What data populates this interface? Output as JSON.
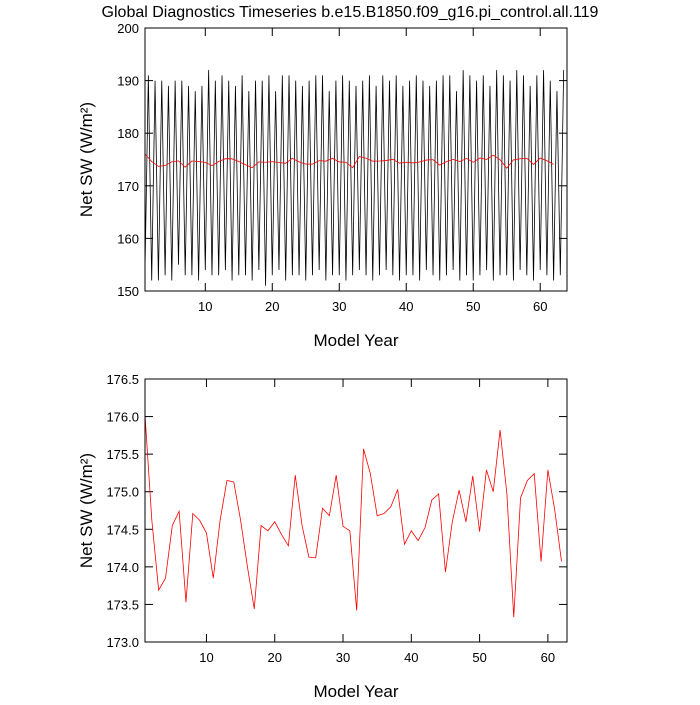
{
  "chart_data": [
    {
      "type": "line",
      "title": "Global Diagnostics Timeseries b.e15.B1850.f09_g16.pi_control.all.119",
      "xlabel": "Model Year",
      "ylabel": "Net SW (W/m²)",
      "xlim": [
        1,
        64
      ],
      "xticks": [
        10,
        20,
        30,
        40,
        50,
        60
      ],
      "ylim": [
        150,
        200
      ],
      "yticks": [
        150,
        160,
        170,
        180,
        190,
        200
      ],
      "series": [
        {
          "color": "#000000",
          "x": [
            1,
            1.5,
            2,
            2.5,
            3,
            3.5,
            4,
            4.5,
            5,
            5.5,
            6,
            6.5,
            7,
            7.5,
            8,
            8.5,
            9,
            9.5,
            10,
            10.5,
            11,
            11.5,
            12,
            12.5,
            13,
            13.5,
            14,
            14.5,
            15,
            15.5,
            16,
            16.5,
            17,
            17.5,
            18,
            18.5,
            19,
            19.5,
            20,
            20.5,
            21,
            21.5,
            22,
            22.5,
            23,
            23.5,
            24,
            24.5,
            25,
            25.5,
            26,
            26.5,
            27,
            27.5,
            28,
            28.5,
            29,
            29.5,
            30,
            30.5,
            31,
            31.5,
            32,
            32.5,
            33,
            33.5,
            34,
            34.5,
            35,
            35.5,
            36,
            36.5,
            37,
            37.5,
            38,
            38.5,
            39,
            39.5,
            40,
            40.5,
            41,
            41.5,
            42,
            42.5,
            43,
            43.5,
            44,
            44.5,
            45,
            45.5,
            46,
            46.5,
            47,
            47.5,
            48,
            48.5,
            49,
            49.5,
            50,
            50.5,
            51,
            51.5,
            52,
            52.5,
            53,
            53.5,
            54,
            54.5,
            55,
            55.5,
            56,
            56.5,
            57,
            57.5,
            58,
            58.5,
            59,
            59.5,
            60,
            60.5,
            61,
            61.5,
            62,
            62.5,
            63,
            63.5
          ],
          "values": [
            154,
            191,
            152,
            190,
            152,
            190,
            153,
            189,
            152,
            190,
            155,
            190,
            153,
            189,
            153,
            188,
            152,
            189,
            154,
            192,
            153,
            190,
            153,
            191,
            154,
            190,
            152,
            189,
            153,
            191,
            153,
            188,
            152,
            190,
            154,
            190,
            151,
            191,
            153,
            188,
            154,
            191,
            152,
            191,
            153,
            190,
            153,
            189,
            152,
            190,
            153,
            191,
            154,
            191,
            152,
            188,
            153,
            190,
            153,
            191,
            152,
            190,
            153,
            189,
            154,
            190,
            153,
            191,
            152,
            189,
            153,
            191,
            154,
            190,
            153,
            191,
            152,
            189,
            153,
            190,
            153,
            191,
            152,
            190,
            154,
            189,
            153,
            190,
            152,
            191,
            153,
            191,
            154,
            188,
            152,
            192,
            153,
            191,
            152,
            190,
            153,
            191,
            154,
            189,
            152,
            192,
            153,
            191,
            153,
            190,
            152,
            192,
            154,
            191,
            153,
            189,
            152,
            191,
            154,
            192,
            153,
            190,
            152,
            188,
            153,
            192
          ]
        },
        {
          "color": "#ff0000",
          "x": [
            1,
            2,
            3,
            4,
            5,
            6,
            7,
            8,
            9,
            10,
            11,
            12,
            13,
            14,
            15,
            16,
            17,
            18,
            19,
            20,
            21,
            22,
            23,
            24,
            25,
            26,
            27,
            28,
            29,
            30,
            31,
            32,
            33,
            34,
            35,
            36,
            37,
            38,
            39,
            40,
            41,
            42,
            43,
            44,
            45,
            46,
            47,
            48,
            49,
            50,
            51,
            52,
            53,
            54,
            55,
            56,
            57,
            58,
            59,
            60,
            61,
            62
          ],
          "values": [
            176.02,
            174.62,
            173.69,
            173.85,
            174.55,
            174.74,
            173.53,
            174.71,
            174.62,
            174.45,
            173.85,
            174.62,
            175.15,
            175.13,
            174.62,
            174.0,
            173.44,
            174.55,
            174.48,
            174.6,
            174.43,
            174.28,
            175.22,
            174.55,
            174.13,
            174.12,
            174.78,
            174.68,
            175.22,
            174.54,
            174.48,
            173.42,
            175.57,
            175.24,
            174.68,
            174.71,
            174.8,
            175.03,
            174.3,
            174.48,
            174.35,
            174.52,
            174.89,
            174.97,
            173.93,
            174.6,
            175.02,
            174.6,
            175.21,
            174.47,
            175.29,
            175.0,
            175.82,
            174.97,
            173.33,
            174.92,
            175.15,
            175.24,
            174.07,
            175.29,
            174.76,
            174.07
          ]
        }
      ]
    },
    {
      "type": "line",
      "xlabel": "Model Year",
      "ylabel": "Net SW (W/m²)",
      "xlim": [
        1,
        62.8
      ],
      "xticks": [
        10,
        20,
        30,
        40,
        50,
        60
      ],
      "ylim": [
        173,
        176.5
      ],
      "yticks": [
        {
          "value": 173,
          "label": "173.0"
        },
        173.5,
        {
          "value": 174,
          "label": "174.0"
        },
        174.5,
        {
          "value": 175,
          "label": "175.0"
        },
        175.5,
        {
          "value": 176,
          "label": "176.0"
        },
        176.5
      ],
      "series": [
        {
          "color": "#ff0000",
          "x": [
            1,
            2,
            3,
            4,
            5,
            6,
            7,
            8,
            9,
            10,
            11,
            12,
            13,
            14,
            15,
            16,
            17,
            18,
            19,
            20,
            21,
            22,
            23,
            24,
            25,
            26,
            27,
            28,
            29,
            30,
            31,
            32,
            33,
            34,
            35,
            36,
            37,
            38,
            39,
            40,
            41,
            42,
            43,
            44,
            45,
            46,
            47,
            48,
            49,
            50,
            51,
            52,
            53,
            54,
            55,
            56,
            57,
            58,
            59,
            60,
            61,
            62
          ],
          "values": [
            176.02,
            174.62,
            173.69,
            173.85,
            174.55,
            174.74,
            173.53,
            174.71,
            174.62,
            174.45,
            173.85,
            174.62,
            175.15,
            175.13,
            174.62,
            174.0,
            173.44,
            174.55,
            174.48,
            174.6,
            174.43,
            174.28,
            175.22,
            174.55,
            174.13,
            174.12,
            174.78,
            174.68,
            175.22,
            174.54,
            174.48,
            173.42,
            175.57,
            175.24,
            174.68,
            174.71,
            174.8,
            175.03,
            174.3,
            174.48,
            174.35,
            174.52,
            174.89,
            174.97,
            173.93,
            174.6,
            175.02,
            174.6,
            175.21,
            174.47,
            175.29,
            175.0,
            175.82,
            174.97,
            173.33,
            174.92,
            175.15,
            175.24,
            174.07,
            175.29,
            174.76,
            174.07
          ]
        }
      ]
    }
  ]
}
